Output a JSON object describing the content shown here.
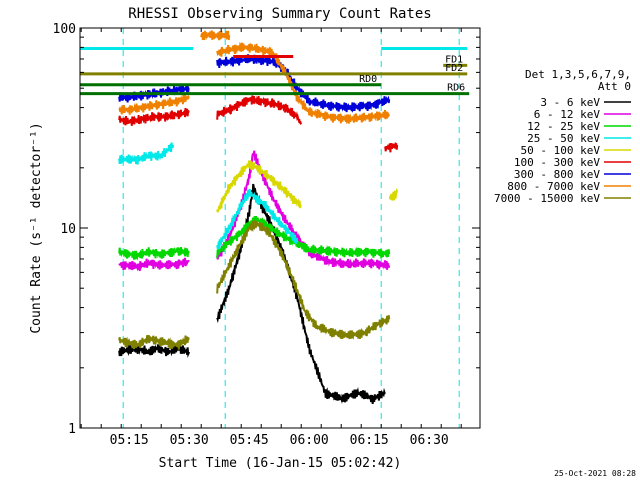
{
  "chart_data": {
    "type": "line",
    "title": "RHESSI Observing Summary Count Rates",
    "xlabel": "Start Time (16-Jan-15 05:02:42)",
    "ylabel": "Count Rate (s⁻¹ detector⁻¹)",
    "x_start": "05:02:42",
    "x_range": [
      "05:02:42",
      "06:42:42"
    ],
    "y_scale": "log",
    "ylim": [
      1,
      100
    ],
    "x_ticks": [
      "05:15",
      "05:30",
      "05:45",
      "06:00",
      "06:15",
      "06:30"
    ],
    "y_ticks": [
      "1",
      "10",
      "100"
    ],
    "legend": {
      "placement": "right",
      "header": [
        "Det 1,3,5,6,7,9,",
        "Att 0"
      ],
      "entries": [
        {
          "label": "3 - 6 keV",
          "color": "#000000"
        },
        {
          "label": "6 - 12 keV",
          "color": "#e000e0"
        },
        {
          "label": "12 - 25 keV",
          "color": "#00d800"
        },
        {
          "label": "25 - 50 keV",
          "color": "#00e8e8"
        },
        {
          "label": "50 - 100 keV",
          "color": "#d8d800"
        },
        {
          "label": "100 - 300 keV",
          "color": "#e00000"
        },
        {
          "label": "300 - 800 keV",
          "color": "#0000d8"
        },
        {
          "label": "800 - 7000 keV",
          "color": "#f08000"
        },
        {
          "label": "7000 - 15000 keV",
          "color": "#808000"
        }
      ]
    },
    "series": [
      {
        "name": "3 - 6 keV",
        "color": "#000000",
        "segments": [
          {
            "x": [
              "05:12:30",
              "05:17",
              "05:20",
              "05:22",
              "05:25",
              "05:27",
              "05:30"
            ],
            "y": [
              2.4,
              2.5,
              2.4,
              2.5,
              2.4,
              2.5,
              2.4
            ]
          },
          {
            "x": [
              "05:37",
              "05:40",
              "05:43",
              "05:45",
              "05:46",
              "05:48",
              "05:51",
              "05:54",
              "05:57",
              "06:00",
              "06:04",
              "06:08",
              "06:12",
              "06:16",
              "06:19"
            ],
            "y": [
              3.5,
              5,
              8,
              12,
              16,
              13,
              10,
              7,
              4.5,
              2.5,
              1.5,
              1.4,
              1.5,
              1.4,
              1.5
            ]
          }
        ]
      },
      {
        "name": "6 - 12 keV",
        "color": "#e000e0",
        "segments": [
          {
            "x": [
              "05:12:30",
              "05:17",
              "05:20",
              "05:23",
              "05:27",
              "05:30"
            ],
            "y": [
              6.6,
              6.4,
              6.7,
              6.5,
              6.6,
              6.8
            ]
          },
          {
            "x": [
              "05:37",
              "05:40",
              "05:43",
              "05:45",
              "05:46",
              "05:48",
              "05:51",
              "05:54",
              "05:57",
              "06:00",
              "06:05",
              "06:10",
              "06:15",
              "06:20"
            ],
            "y": [
              7,
              9,
              13,
              18,
              24,
              19,
              14,
              11,
              9,
              7.5,
              6.8,
              6.6,
              6.7,
              6.5
            ]
          }
        ]
      },
      {
        "name": "12 - 25 keV",
        "color": "#00d800",
        "segments": [
          {
            "x": [
              "05:12:30",
              "05:17",
              "05:20",
              "05:23",
              "05:27",
              "05:30"
            ],
            "y": [
              7.6,
              7.3,
              7.6,
              7.4,
              7.7,
              7.5
            ]
          },
          {
            "x": [
              "05:37",
              "05:40",
              "05:43",
              "05:45",
              "05:47",
              "05:49",
              "05:52",
              "05:55",
              "05:58",
              "06:00",
              "06:05",
              "06:10",
              "06:15",
              "06:20"
            ],
            "y": [
              7.5,
              8.5,
              9.5,
              10.5,
              11,
              10.5,
              9.5,
              8.8,
              8.2,
              7.8,
              7.7,
              7.5,
              7.6,
              7.4
            ]
          }
        ]
      },
      {
        "name": "25 - 50 keV",
        "color": "#00e8e8",
        "segments": [
          {
            "x": [
              "05:12:30",
              "05:17",
              "05:20",
              "05:23",
              "05:26"
            ],
            "y": [
              22,
              22,
              23,
              23,
              26
            ]
          },
          {
            "x": [
              "05:37",
              "05:40",
              "05:43",
              "05:45",
              "05:47",
              "05:49",
              "05:52",
              "05:55",
              "05:57"
            ],
            "y": [
              8,
              10,
              13,
              15,
              14,
              13,
              11,
              9.5,
              8.5
            ]
          }
        ]
      },
      {
        "name": "50 - 100 keV",
        "color": "#d8d800",
        "segments": [
          {
            "x": [
              "05:37",
              "05:40",
              "05:43",
              "05:45",
              "05:47",
              "05:50",
              "05:53",
              "05:56",
              "05:58"
            ],
            "y": [
              12,
              16,
              19,
              21,
              20,
              18,
              16,
              14,
              13
            ]
          },
          {
            "x": [
              "06:20",
              "06:22"
            ],
            "y": [
              14,
              15
            ]
          }
        ]
      },
      {
        "name": "100 - 300 keV",
        "color": "#e00000",
        "segments": [
          {
            "x": [
              "05:12:30",
              "05:15",
              "05:18",
              "05:21",
              "05:24",
              "05:27",
              "05:30"
            ],
            "y": [
              35,
              34,
              35,
              36,
              36,
              37,
              38
            ]
          },
          {
            "x": [
              "05:37",
              "05:40",
              "05:43",
              "05:45",
              "05:48",
              "05:51",
              "05:54",
              "05:57",
              "05:58"
            ],
            "y": [
              37,
              39,
              42,
              44,
              43,
              42,
              40,
              36,
              33
            ]
          },
          {
            "x": [
              "06:19",
              "06:22"
            ],
            "y": [
              25,
              26
            ]
          }
        ]
      },
      {
        "name": "300 - 800 keV",
        "color": "#0000d8",
        "segments": [
          {
            "x": [
              "05:12:30",
              "05:15",
              "05:18",
              "05:21",
              "05:24",
              "05:27",
              "05:30"
            ],
            "y": [
              45,
              45,
              46,
              47,
              48,
              49,
              50
            ]
          },
          {
            "x": [
              "05:37",
              "05:40",
              "05:43",
              "05:45",
              "05:48",
              "05:51",
              "05:54",
              "05:57",
              "06:00",
              "06:05",
              "06:10",
              "06:15",
              "06:17",
              "06:20"
            ],
            "y": [
              67,
              68,
              69,
              70,
              69,
              68,
              62,
              50,
              43,
              41,
              40,
              41,
              42,
              44
            ]
          }
        ]
      },
      {
        "name": "800 - 7000 keV",
        "color": "#f08000",
        "segments": [
          {
            "x": [
              "05:12:30",
              "05:15",
              "05:18",
              "05:21",
              "05:24",
              "05:27",
              "05:30"
            ],
            "y": [
              39,
              39,
              40,
              41,
              42,
              43,
              45
            ]
          },
          {
            "x": [
              "05:37",
              "05:40",
              "05:43",
              "05:45",
              "05:48",
              "05:51",
              "05:54",
              "05:57",
              "06:00",
              "06:05",
              "06:10",
              "06:15",
              "06:20"
            ],
            "y": [
              75,
              78,
              80,
              80,
              78,
              75,
              60,
              45,
              38,
              36,
              35,
              36,
              37
            ]
          },
          {
            "x": [
              "05:33",
              "05:40"
            ],
            "y": [
              92,
              92
            ]
          }
        ]
      },
      {
        "name": "7000 - 15000 keV",
        "color": "#808000",
        "segments": [
          {
            "x": [
              "05:12:30",
              "05:17",
              "05:20",
              "05:23",
              "05:27",
              "05:30"
            ],
            "y": [
              2.75,
              2.6,
              2.8,
              2.7,
              2.6,
              2.8
            ]
          },
          {
            "x": [
              "05:37",
              "05:40",
              "05:43",
              "05:45",
              "05:47",
              "05:50",
              "05:53",
              "05:56",
              "05:59",
              "06:02",
              "06:06",
              "06:10",
              "06:14",
              "06:17",
              "06:20"
            ],
            "y": [
              5,
              6.5,
              8.5,
              10,
              10.5,
              9.5,
              7.5,
              5.5,
              3.8,
              3.2,
              3,
              2.9,
              3,
              3.3,
              3.5
            ]
          }
        ]
      }
    ],
    "annotations": {
      "dashed_lines": [
        "05:13:30",
        "05:39:00",
        "06:18:00",
        "06:37:30"
      ],
      "bars": [
        {
          "label": "FD1",
          "start": "06:33:30",
          "end": "06:39:30",
          "y": 65,
          "color": "#808000"
        },
        {
          "label": "FD2",
          "start": "05:02:42",
          "end": "06:39:30",
          "y": 59,
          "color": "#808000"
        },
        {
          "label": "RD0",
          "start": "05:02:42",
          "end": "06:18:00",
          "y": 52,
          "color": "#007000"
        },
        {
          "label": "RD6",
          "start": "05:02:42",
          "end": "06:40:00",
          "y": 47,
          "color": "#007000"
        },
        {
          "label": "",
          "start": "05:02:42",
          "end": "05:31:00",
          "y": 79,
          "color": "#00e8e8"
        },
        {
          "label": "",
          "start": "06:18:00",
          "end": "06:39:30",
          "y": 79,
          "color": "#00e8e8"
        },
        {
          "label": "",
          "start": "05:41:00",
          "end": "05:56:00",
          "y": 72,
          "color": "#e00000"
        }
      ]
    },
    "footer": "25-Oct-2021 08:28"
  }
}
